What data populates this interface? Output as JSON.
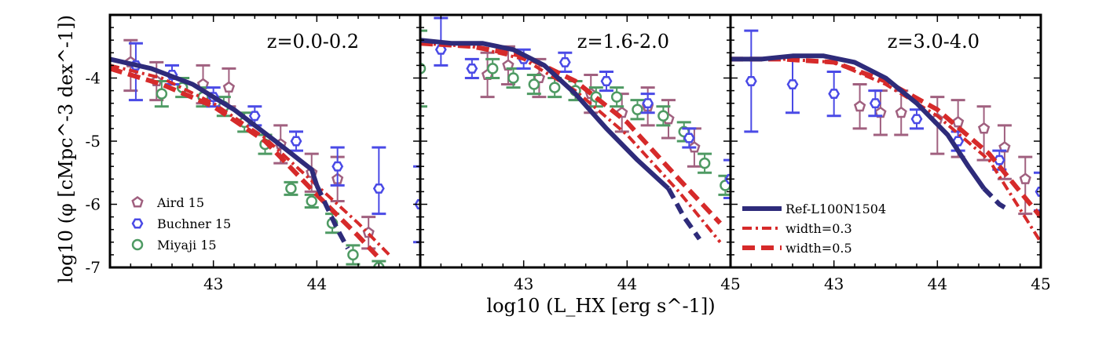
{
  "chart_data": {
    "type": "scatter",
    "xlabel": "log10 (L_HX [erg s^-1])",
    "ylabel": "log10 (φ [cMpc^-3 dex^-1])",
    "xlim": [
      42,
      45
    ],
    "ylim": [
      -7,
      -3
    ],
    "x_ticks": [
      "43",
      "44",
      "45"
    ],
    "x_ticks_first_panel": [
      "43",
      "44"
    ],
    "y_ticks": [
      "-4",
      "-5",
      "-6",
      "-7"
    ],
    "colors": {
      "aird": "#a0607f",
      "buchner": "#4a4ae6",
      "miyaji": "#4e9a63",
      "ref": "#2e2b7a",
      "width": "#d62a2a"
    },
    "observation_legend": [
      {
        "label": "Aird 15",
        "marker": "pentagon"
      },
      {
        "label": "Buchner 15",
        "marker": "hexagon"
      },
      {
        "label": "Miyaji 15",
        "marker": "circle"
      }
    ],
    "model_legend": [
      {
        "label": "Ref-L100N1504",
        "style": "solid"
      },
      {
        "label": "width=0.3",
        "style": "dotdash"
      },
      {
        "label": "width=0.5",
        "style": "dashed"
      }
    ],
    "panels": [
      {
        "label": "z=0.0-0.2",
        "aird": [
          [
            42.2,
            -3.75,
            0.45,
            0.35
          ],
          [
            42.45,
            -4.05,
            0.3,
            0.3
          ],
          [
            42.9,
            -4.1,
            0.3,
            0.3
          ],
          [
            43.15,
            -4.15,
            0.3,
            0.3
          ],
          [
            43.65,
            -5.05,
            0.3,
            0.3
          ],
          [
            43.95,
            -5.5,
            0.3,
            0.3
          ],
          [
            44.2,
            -5.6,
            0.35,
            0.35
          ],
          [
            44.5,
            -6.45,
            0.25,
            0.25
          ]
        ],
        "buchner": [
          [
            42.25,
            -3.8,
            0.55,
            0.35
          ],
          [
            42.6,
            -3.95,
            0.15,
            0.15
          ],
          [
            43.0,
            -4.3,
            0.15,
            0.15
          ],
          [
            43.4,
            -4.6,
            0.15,
            0.15
          ],
          [
            43.8,
            -5.0,
            0.15,
            0.15
          ],
          [
            44.2,
            -5.4,
            0.3,
            0.3
          ],
          [
            44.6,
            -5.75,
            0.4,
            0.65
          ],
          [
            45.0,
            -6.0,
            0.6,
            0.6
          ]
        ],
        "miyaji": [
          [
            42.5,
            -4.25,
            0.2,
            0.2
          ],
          [
            42.7,
            -4.15,
            0.15,
            0.15
          ],
          [
            42.9,
            -4.3,
            0.15,
            0.15
          ],
          [
            43.1,
            -4.45,
            0.15,
            0.15
          ],
          [
            43.3,
            -4.7,
            0.15,
            0.15
          ],
          [
            43.5,
            -5.05,
            0.15,
            0.15
          ],
          [
            43.75,
            -5.75,
            0.1,
            0.1
          ],
          [
            43.95,
            -5.95,
            0.1,
            0.1
          ],
          [
            44.15,
            -6.3,
            0.15,
            0.15
          ],
          [
            44.35,
            -6.8,
            0.15,
            0.15
          ],
          [
            44.6,
            -7.0,
            0.1,
            0.1
          ]
        ],
        "ref_solid": [
          [
            42.0,
            -3.7
          ],
          [
            42.4,
            -3.85
          ],
          [
            42.8,
            -4.1
          ],
          [
            43.2,
            -4.5
          ],
          [
            43.6,
            -5.0
          ],
          [
            43.95,
            -5.45
          ],
          [
            44.0,
            -5.7
          ]
        ],
        "ref_dashed": [
          [
            44.0,
            -5.7
          ],
          [
            44.2,
            -6.4
          ],
          [
            44.3,
            -6.7
          ]
        ],
        "width03": [
          [
            42.0,
            -3.8
          ],
          [
            42.5,
            -4.0
          ],
          [
            43.0,
            -4.4
          ],
          [
            43.5,
            -4.95
          ],
          [
            44.0,
            -5.7
          ],
          [
            44.4,
            -6.3
          ],
          [
            44.7,
            -6.8
          ]
        ],
        "width05": [
          [
            42.0,
            -3.85
          ],
          [
            42.5,
            -4.1
          ],
          [
            43.0,
            -4.45
          ],
          [
            43.5,
            -5.0
          ],
          [
            44.0,
            -5.85
          ],
          [
            44.4,
            -6.5
          ],
          [
            44.6,
            -6.85
          ]
        ]
      },
      {
        "label": "z=1.6-2.0",
        "aird": [
          [
            42.65,
            -3.95,
            0.35,
            0.35
          ],
          [
            42.85,
            -3.8,
            0.3,
            0.3
          ],
          [
            43.15,
            -4.0,
            0.3,
            0.3
          ],
          [
            43.65,
            -4.25,
            0.3,
            0.3
          ],
          [
            43.95,
            -4.55,
            0.3,
            0.3
          ],
          [
            44.2,
            -4.45,
            0.3,
            0.3
          ],
          [
            44.4,
            -4.65,
            0.3,
            0.3
          ],
          [
            44.65,
            -5.1,
            0.3,
            0.3
          ]
        ],
        "buchner": [
          [
            42.2,
            -3.55,
            0.25,
            0.5
          ],
          [
            42.5,
            -3.85,
            0.15,
            0.15
          ],
          [
            43.0,
            -3.7,
            0.15,
            0.15
          ],
          [
            43.4,
            -3.75,
            0.15,
            0.15
          ],
          [
            43.8,
            -4.05,
            0.15,
            0.15
          ],
          [
            44.2,
            -4.4,
            0.15,
            0.15
          ],
          [
            44.6,
            -4.95,
            0.15,
            0.15
          ],
          [
            45.0,
            -5.6,
            0.3,
            0.3
          ]
        ],
        "miyaji": [
          [
            42.0,
            -3.85,
            0.6,
            0.6
          ],
          [
            42.7,
            -3.85,
            0.15,
            0.15
          ],
          [
            42.9,
            -4.0,
            0.15,
            0.15
          ],
          [
            43.1,
            -4.1,
            0.15,
            0.15
          ],
          [
            43.3,
            -4.15,
            0.15,
            0.15
          ],
          [
            43.5,
            -4.2,
            0.15,
            0.15
          ],
          [
            43.7,
            -4.3,
            0.15,
            0.15
          ],
          [
            43.9,
            -4.3,
            0.15,
            0.15
          ],
          [
            44.1,
            -4.5,
            0.15,
            0.15
          ],
          [
            44.35,
            -4.6,
            0.15,
            0.15
          ],
          [
            44.55,
            -4.85,
            0.15,
            0.15
          ],
          [
            44.75,
            -5.35,
            0.15,
            0.15
          ],
          [
            44.95,
            -5.7,
            0.15,
            0.15
          ],
          [
            45.1,
            -6.1,
            0.15,
            0.15
          ]
        ],
        "ref_solid": [
          [
            42.0,
            -3.4
          ],
          [
            42.3,
            -3.45
          ],
          [
            42.6,
            -3.45
          ],
          [
            42.9,
            -3.55
          ],
          [
            43.2,
            -3.8
          ],
          [
            43.5,
            -4.25
          ],
          [
            43.8,
            -4.8
          ],
          [
            44.1,
            -5.3
          ],
          [
            44.3,
            -5.6
          ],
          [
            44.4,
            -5.75
          ]
        ],
        "ref_dashed": [
          [
            44.4,
            -5.75
          ],
          [
            44.55,
            -6.2
          ],
          [
            44.7,
            -6.55
          ]
        ],
        "width03": [
          [
            42.0,
            -3.45
          ],
          [
            42.5,
            -3.5
          ],
          [
            43.0,
            -3.7
          ],
          [
            43.5,
            -4.2
          ],
          [
            44.0,
            -4.9
          ],
          [
            44.5,
            -5.8
          ],
          [
            44.9,
            -6.6
          ]
        ],
        "width05": [
          [
            42.0,
            -3.45
          ],
          [
            42.5,
            -3.5
          ],
          [
            43.0,
            -3.65
          ],
          [
            43.5,
            -4.05
          ],
          [
            44.0,
            -4.7
          ],
          [
            44.5,
            -5.6
          ],
          [
            44.9,
            -6.3
          ]
        ]
      },
      {
        "label": "z=3.0-4.0",
        "aird": [
          [
            43.25,
            -4.45,
            0.35,
            0.35
          ],
          [
            43.45,
            -4.55,
            0.35,
            0.35
          ],
          [
            43.65,
            -4.55,
            0.35,
            0.35
          ],
          [
            44.0,
            -4.65,
            0.55,
            0.35
          ],
          [
            44.2,
            -4.7,
            0.55,
            0.35
          ],
          [
            44.45,
            -4.8,
            0.5,
            0.35
          ],
          [
            44.65,
            -5.1,
            0.5,
            0.35
          ],
          [
            44.85,
            -5.6,
            0.55,
            0.35
          ]
        ],
        "buchner": [
          [
            42.2,
            -4.05,
            0.8,
            0.8
          ],
          [
            42.6,
            -4.1,
            0.45,
            0.45
          ],
          [
            43.0,
            -4.25,
            0.35,
            0.35
          ],
          [
            43.4,
            -4.4,
            0.2,
            0.2
          ],
          [
            43.8,
            -4.65,
            0.15,
            0.15
          ],
          [
            44.2,
            -5.0,
            0.15,
            0.15
          ],
          [
            44.6,
            -5.3,
            0.15,
            0.15
          ],
          [
            45.0,
            -5.8,
            0.3,
            0.3
          ]
        ],
        "miyaji": [],
        "ref_solid": [
          [
            42.0,
            -3.7
          ],
          [
            42.3,
            -3.7
          ],
          [
            42.6,
            -3.65
          ],
          [
            42.9,
            -3.65
          ],
          [
            43.2,
            -3.75
          ],
          [
            43.5,
            -4.0
          ],
          [
            43.8,
            -4.4
          ],
          [
            44.1,
            -4.9
          ],
          [
            44.3,
            -5.4
          ],
          [
            44.45,
            -5.75
          ]
        ],
        "ref_dashed": [
          [
            44.45,
            -5.75
          ],
          [
            44.6,
            -6.0
          ],
          [
            44.7,
            -6.1
          ]
        ],
        "width03": [
          [
            42.0,
            -3.7
          ],
          [
            42.5,
            -3.7
          ],
          [
            43.0,
            -3.75
          ],
          [
            43.5,
            -4.1
          ],
          [
            44.0,
            -4.6
          ],
          [
            44.5,
            -5.3
          ],
          [
            45.0,
            -6.6
          ]
        ],
        "width05": [
          [
            42.0,
            -3.7
          ],
          [
            42.5,
            -3.7
          ],
          [
            43.0,
            -3.75
          ],
          [
            43.5,
            -4.05
          ],
          [
            44.0,
            -4.5
          ],
          [
            44.5,
            -5.2
          ],
          [
            45.0,
            -6.2
          ]
        ]
      }
    ]
  }
}
